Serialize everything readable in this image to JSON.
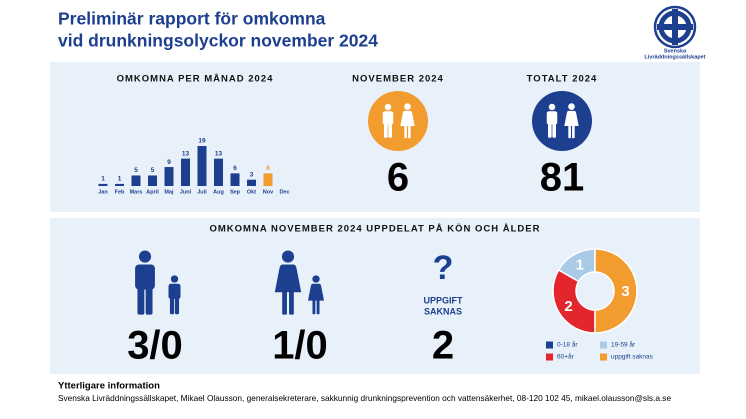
{
  "header": {
    "title_lines": [
      "Preliminär rapport för omkomna",
      "vid drunkningsolyckor november 2024"
    ],
    "logo_lines": [
      "Svenska",
      "Livräddningssällskapet"
    ]
  },
  "monthly": {
    "title": "OMKOMNA PER MÅNAD 2024",
    "categories": [
      "Jan",
      "Feb",
      "Mars",
      "April",
      "Maj",
      "Juni",
      "Juli",
      "Aug",
      "Sep",
      "Okt",
      "Nov",
      "Dec"
    ],
    "values": [
      1,
      1,
      5,
      5,
      9,
      13,
      19,
      13,
      6,
      3,
      6,
      null
    ],
    "colors": [
      "#1d3f8f",
      "#1d3f8f",
      "#1d3f8f",
      "#1d3f8f",
      "#1d3f8f",
      "#1d3f8f",
      "#1d3f8f",
      "#1d3f8f",
      "#1d3f8f",
      "#1d3f8f",
      "#f29b2e",
      "#1d3f8f"
    ]
  },
  "november": {
    "title": "NOVEMBER 2024",
    "value": 6
  },
  "total": {
    "title": "TOTALT 2024",
    "value": 81
  },
  "breakdown": {
    "title": "OMKOMNA NOVEMBER 2024 UPPDELAT PÅ KÖN OCH ÅLDER",
    "men": "3/0",
    "women": "1/0",
    "unknown": {
      "symbol": "?",
      "label_lines": [
        "UPPGIFT",
        "SAKNAS"
      ],
      "value": 2
    }
  },
  "age_groups": {
    "series": [
      {
        "name": "0-18 år",
        "color": "#1d3f8f",
        "value": 0
      },
      {
        "name": "19-59 år",
        "color": "#a9cbe8",
        "value": 1
      },
      {
        "name": "60+år",
        "color": "#e3262d",
        "value": 2
      },
      {
        "name": "uppgift saknas",
        "color": "#f29b2e",
        "value": 3
      }
    ]
  },
  "footer": {
    "heading": "Ytterligare information",
    "text": "Svenska Livräddningssällskapet, Mikael Olausson, generalsekreterare, sakkunnig drunkningsprevention och vattensäkerhet, 08-120 102 45, mikael.olausson@sls.a.se"
  }
}
